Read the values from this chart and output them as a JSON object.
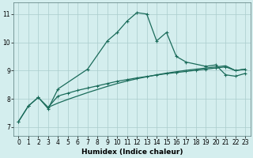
{
  "xlabel": "Humidex (Indice chaleur)",
  "bg_color": "#d4eeee",
  "grid_color": "#aacccc",
  "line_color": "#1a6b5a",
  "xlim": [
    -0.5,
    23.5
  ],
  "ylim": [
    6.7,
    11.4
  ],
  "yticks": [
    7,
    8,
    9,
    10,
    11
  ],
  "xticks": [
    0,
    1,
    2,
    3,
    4,
    5,
    6,
    7,
    8,
    9,
    10,
    11,
    12,
    13,
    14,
    15,
    16,
    17,
    18,
    19,
    20,
    21,
    22,
    23
  ],
  "series1_x": [
    0,
    1,
    2,
    3,
    4,
    7,
    9,
    10,
    11,
    12,
    13,
    14,
    15,
    16,
    17,
    19,
    20,
    21,
    22,
    23
  ],
  "series1_y": [
    7.2,
    7.75,
    8.05,
    7.65,
    8.35,
    9.05,
    10.05,
    10.35,
    10.75,
    11.05,
    11.0,
    10.05,
    10.35,
    9.5,
    9.3,
    9.15,
    9.2,
    8.85,
    8.8,
    8.9
  ],
  "series2_x": [
    0,
    1,
    2,
    3,
    4,
    5,
    6,
    7,
    8,
    9,
    10,
    11,
    12,
    13,
    14,
    15,
    16,
    17,
    18,
    19,
    20,
    21,
    22,
    23
  ],
  "series2_y": [
    7.2,
    7.75,
    8.05,
    7.7,
    8.1,
    8.2,
    8.3,
    8.38,
    8.46,
    8.54,
    8.62,
    8.68,
    8.74,
    8.79,
    8.84,
    8.89,
    8.93,
    8.97,
    9.01,
    9.05,
    9.09,
    9.13,
    9.0,
    9.05
  ],
  "series3_x": [
    3,
    4,
    5,
    6,
    7,
    8,
    9,
    10,
    11,
    12,
    13,
    14,
    15,
    16,
    17,
    18,
    19,
    20,
    21,
    22,
    23
  ],
  "series3_y": [
    7.7,
    7.85,
    7.98,
    8.1,
    8.22,
    8.33,
    8.44,
    8.54,
    8.63,
    8.71,
    8.78,
    8.85,
    8.91,
    8.96,
    9.01,
    9.05,
    9.09,
    9.13,
    9.17,
    9.0,
    9.05
  ]
}
